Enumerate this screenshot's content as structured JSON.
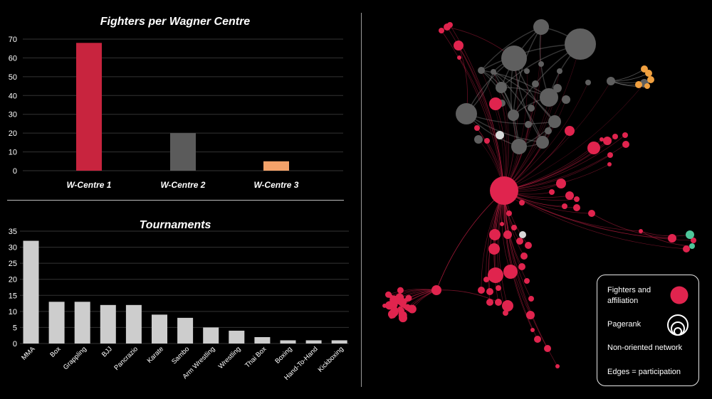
{
  "colors": {
    "background": "#000000",
    "fighter_red": "#e0244e",
    "bar_red": "#c8243e",
    "bar_dark": "#5b5b5b",
    "bar_orange": "#f4a269",
    "bar_light": "#cdcdcd",
    "node_gray": "#5f5f5f",
    "node_orange": "#f0a040",
    "node_green": "#4fc59a",
    "grid": "#333333"
  },
  "chart_data": [
    {
      "type": "bar",
      "title": "Fighters per Wagner Centre",
      "categories": [
        "W-Centre 1",
        "W-Centre 2",
        "W-Centre 3"
      ],
      "values": [
        68,
        20,
        5
      ],
      "bar_colors": [
        "#c8243e",
        "#5b5b5b",
        "#f4a269"
      ],
      "ylim": [
        0,
        70
      ],
      "yticks": [
        0,
        10,
        20,
        30,
        40,
        50,
        60,
        70
      ],
      "grid": true,
      "xlabel": "",
      "ylabel": ""
    },
    {
      "type": "bar",
      "title": "Tournaments",
      "categories": [
        "MMA",
        "Box",
        "Grappling",
        "BJJ",
        "Pancrazio",
        "Karate",
        "Sambo",
        "Arm Wrestling",
        "Wrestling",
        "Thai Box",
        "Boxing",
        "Hand-To-Hand",
        "Kickboxing"
      ],
      "values": [
        32,
        13,
        13,
        12,
        12,
        9,
        8,
        5,
        4,
        2,
        1,
        1,
        1
      ],
      "ylim": [
        0,
        35
      ],
      "yticks": [
        0,
        5,
        10,
        15,
        20,
        25,
        30,
        35
      ],
      "grid": true,
      "xlabel": "",
      "ylabel": ""
    }
  ],
  "legend": {
    "item1_line1": "Fighters and",
    "item1_line2": "affiliation",
    "item2": "Pagerank",
    "item3": "Non-oriented network",
    "item4": "Edges = participation"
  }
}
